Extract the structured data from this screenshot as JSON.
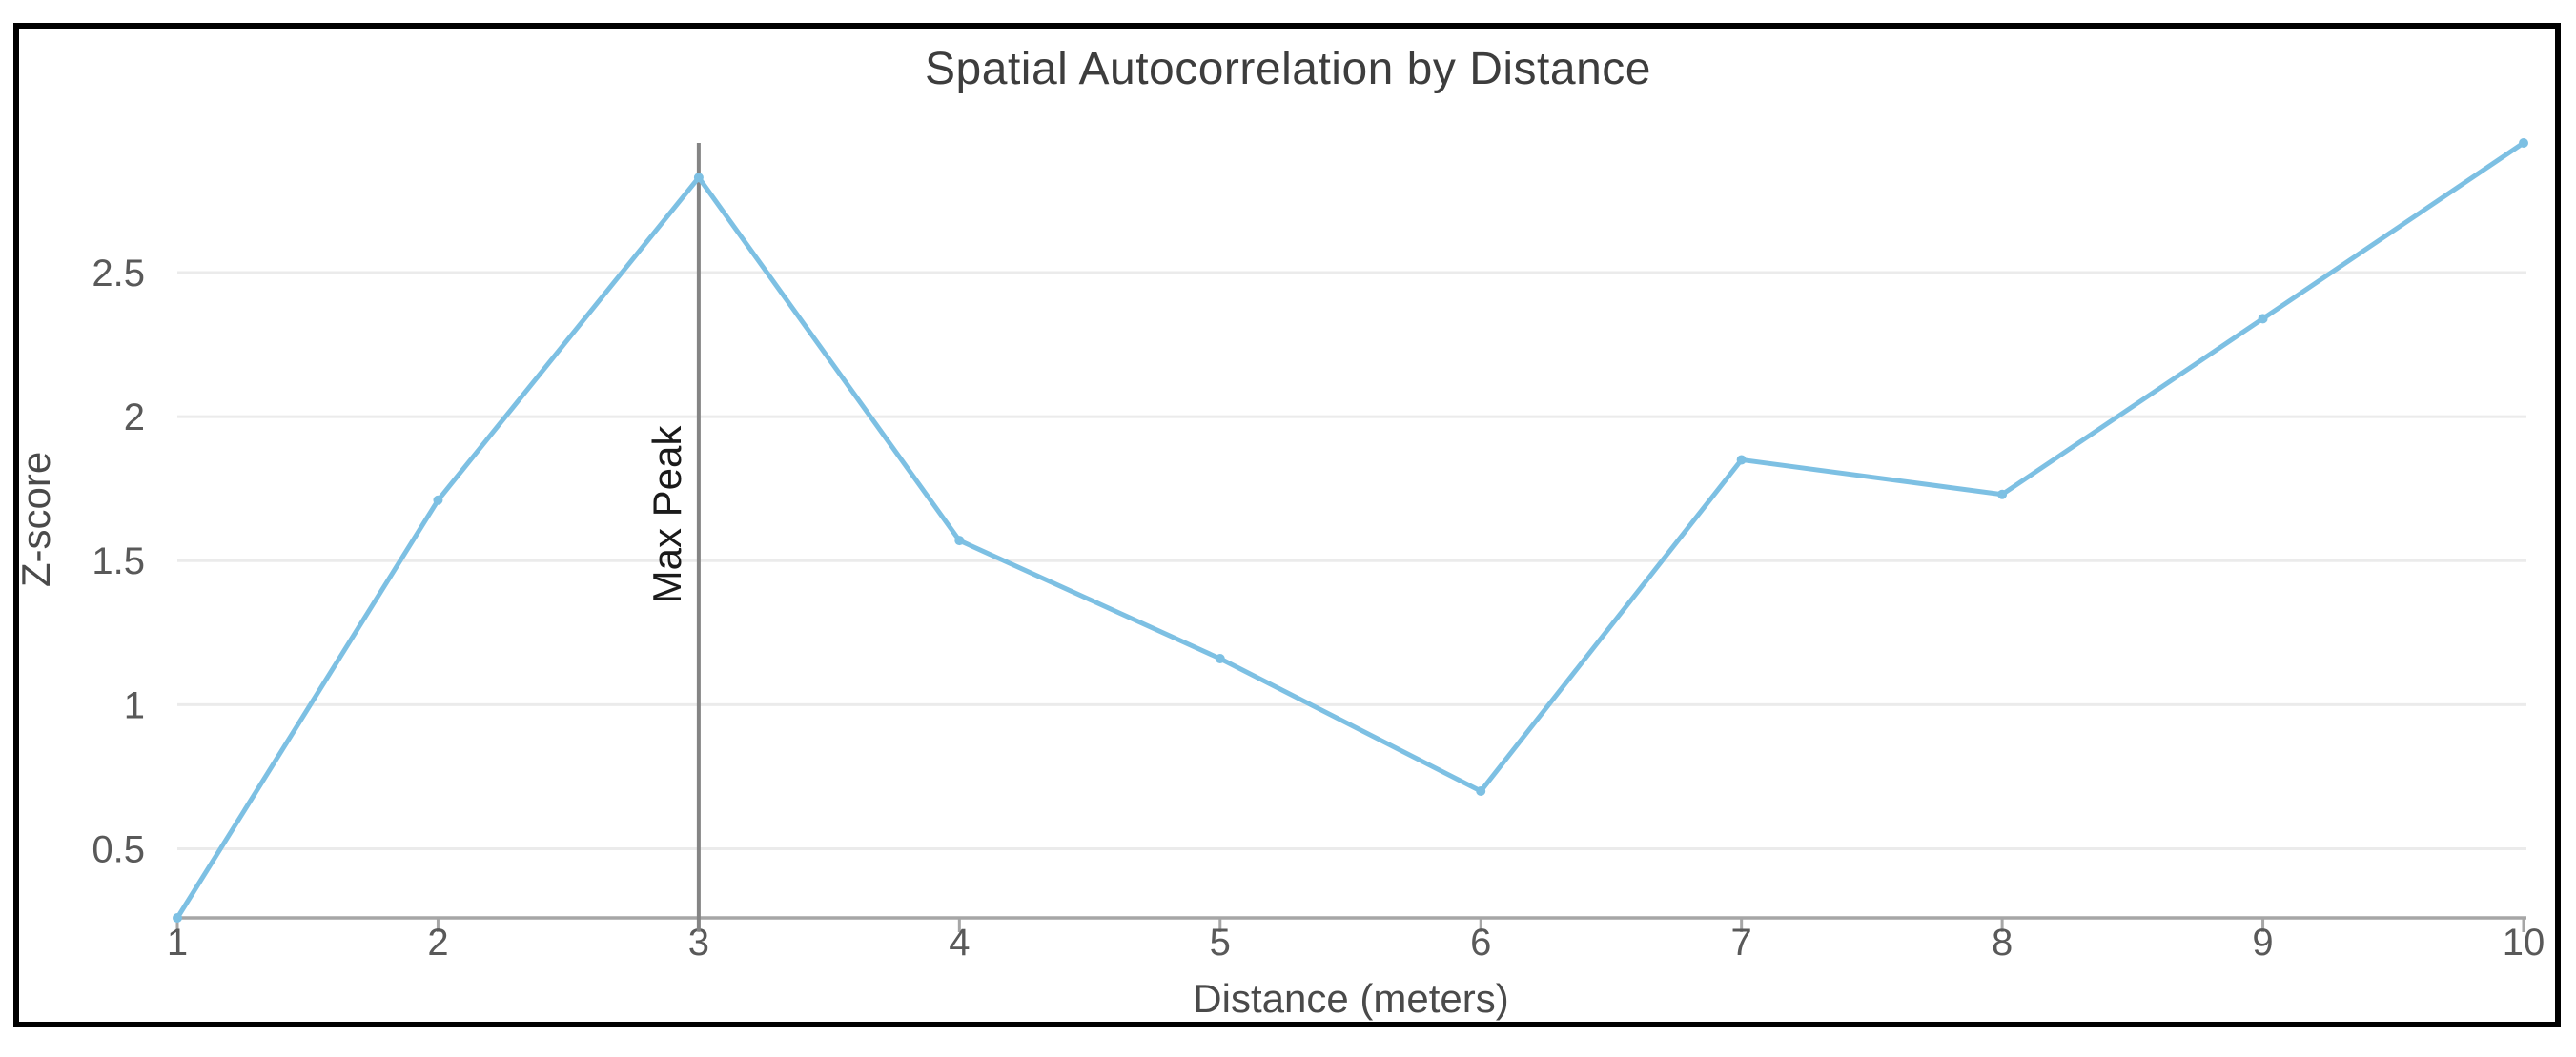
{
  "chart_data": {
    "type": "line",
    "title": "Spatial Autocorrelation by Distance",
    "xlabel": "Distance (meters)",
    "ylabel": "Z-score",
    "x": [
      1,
      2,
      3,
      4,
      5,
      6,
      7,
      8,
      9,
      10
    ],
    "series": [
      {
        "name": "Z-score",
        "values": [
          0.26,
          1.71,
          2.83,
          1.57,
          1.16,
          0.7,
          1.85,
          1.73,
          2.34,
          2.95
        ]
      }
    ],
    "x_ticks": [
      {
        "value": 1,
        "label": "1"
      },
      {
        "value": 2,
        "label": "2"
      },
      {
        "value": 3,
        "label": "3"
      },
      {
        "value": 4,
        "label": "4"
      },
      {
        "value": 5,
        "label": "5"
      },
      {
        "value": 6,
        "label": "6"
      },
      {
        "value": 7,
        "label": "7"
      },
      {
        "value": 8,
        "label": "8"
      },
      {
        "value": 9,
        "label": "9"
      },
      {
        "value": 10,
        "label": "10"
      }
    ],
    "y_ticks": [
      {
        "value": 0.5,
        "label": "0.5"
      },
      {
        "value": 1,
        "label": "1"
      },
      {
        "value": 1.5,
        "label": "1.5"
      },
      {
        "value": 2,
        "label": "2"
      },
      {
        "value": 2.5,
        "label": "2.5"
      }
    ],
    "xlim": [
      1,
      10
    ],
    "ylim": [
      0.26,
      2.95
    ],
    "grid": true,
    "legend": false,
    "annotation": {
      "label": "Max Peak",
      "x": 3
    },
    "colors": {
      "line": "#7dc0e3",
      "grid": "#ebebeb",
      "axis": "#a6a6a6",
      "annotation_line": "#848484",
      "tick_text": "#595959",
      "title_text": "#3d3d3d",
      "annotation_text": "#1a1a1a",
      "frame_border": "#000000",
      "background": "#ffffff"
    }
  }
}
